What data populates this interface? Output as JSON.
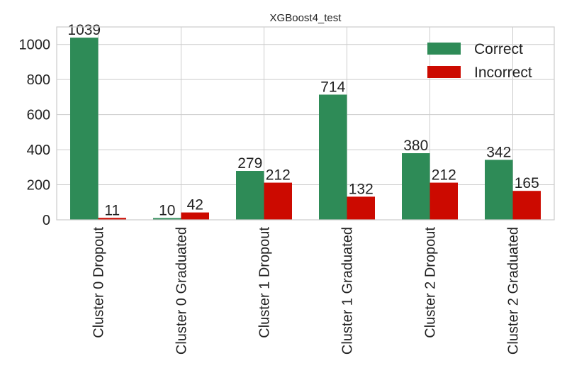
{
  "chart_data": {
    "type": "bar",
    "title": "XGBoost4_test",
    "xlabel": "",
    "ylabel": "",
    "categories": [
      "Cluster 0 Dropout",
      "Cluster 0 Graduated",
      "Cluster 1 Dropout",
      "Cluster 1 Graduated",
      "Cluster 2 Dropout",
      "Cluster 2 Graduated"
    ],
    "series": [
      {
        "name": "Correct",
        "color": "#2e8b57",
        "values": [
          1039,
          10,
          279,
          714,
          380,
          342
        ]
      },
      {
        "name": "Incorrect",
        "color": "#cc0a00",
        "values": [
          11,
          42,
          212,
          132,
          212,
          165
        ]
      }
    ],
    "ylim": [
      0,
      1100
    ],
    "yticks": [
      0,
      200,
      400,
      600,
      800,
      1000
    ],
    "grid": true,
    "legend_position": "top-right",
    "data_labels": true
  }
}
